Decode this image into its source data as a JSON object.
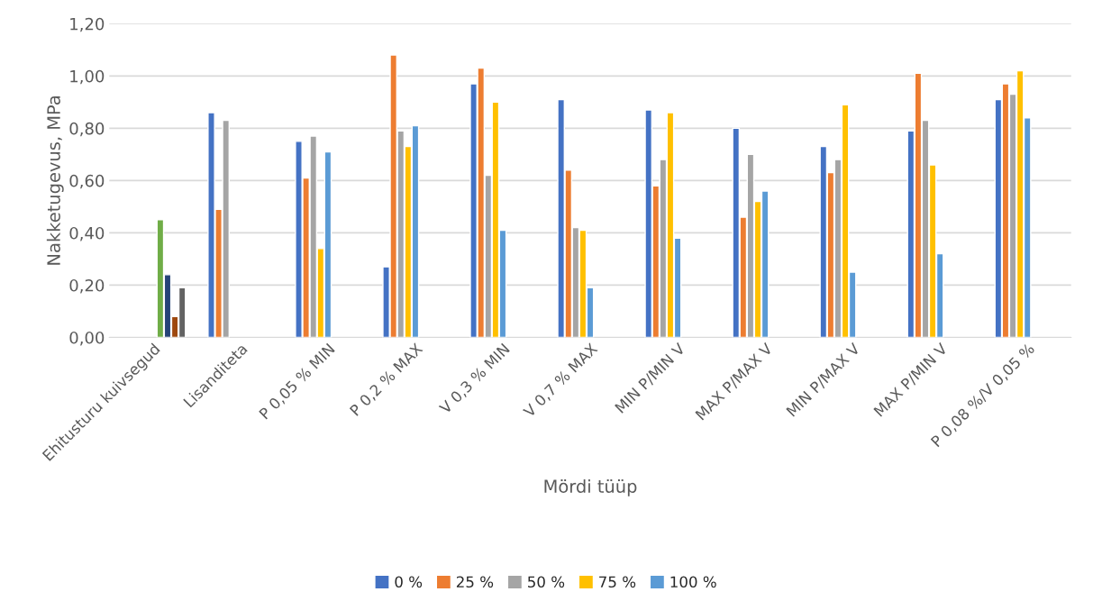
{
  "chart_data": {
    "type": "bar",
    "xlabel": "Mördi tüüp",
    "ylabel": "Nakketugevus, MPa",
    "categories": [
      "Ehitusturu kuivsegud",
      "Lisanditeta",
      "P 0,05 % MIN",
      "P 0,2 % MAX",
      "V 0,3 % MIN",
      "V 0,7 % MAX",
      "MIN P/MIN V",
      "MAX P/MAX V",
      "MIN P/MAX V",
      "MAX P/MIN V",
      "P 0,08 %/V 0,05 %"
    ],
    "series": [
      {
        "name": "0 %",
        "color": "#4472c4",
        "values": [
          null,
          0.86,
          0.75,
          0.27,
          0.97,
          0.91,
          0.87,
          0.8,
          0.73,
          0.79,
          0.91
        ]
      },
      {
        "name": "25 %",
        "color": "#ed7d31",
        "values": [
          null,
          0.49,
          0.61,
          1.08,
          1.03,
          0.64,
          0.58,
          0.46,
          0.63,
          1.01,
          0.97
        ]
      },
      {
        "name": "50 %",
        "color": "#a5a5a5",
        "values": [
          null,
          0.83,
          0.77,
          0.79,
          0.62,
          0.42,
          0.68,
          0.7,
          0.68,
          0.83,
          0.93
        ]
      },
      {
        "name": "75 %",
        "color": "#ffc000",
        "values": [
          null,
          null,
          0.34,
          0.73,
          0.9,
          0.41,
          0.86,
          0.52,
          0.89,
          0.66,
          1.02
        ]
      },
      {
        "name": "100 %",
        "color": "#5b9bd5",
        "values": [
          null,
          null,
          0.71,
          0.81,
          0.41,
          0.19,
          0.38,
          0.56,
          0.25,
          0.32,
          0.84
        ]
      },
      {
        "color": "#70ad47",
        "values": [
          0.45,
          null,
          null,
          null,
          null,
          null,
          null,
          null,
          null,
          null,
          null
        ]
      },
      {
        "color": "#264478",
        "values": [
          0.24,
          null,
          null,
          null,
          null,
          null,
          null,
          null,
          null,
          null,
          null
        ]
      },
      {
        "color": "#9e480e",
        "values": [
          0.08,
          null,
          null,
          null,
          null,
          null,
          null,
          null,
          null,
          null,
          null
        ]
      },
      {
        "color": "#636363",
        "values": [
          0.19,
          null,
          null,
          null,
          null,
          null,
          null,
          null,
          null,
          null,
          null
        ]
      }
    ],
    "ylim": [
      0,
      1.2
    ],
    "yticks": [
      {
        "value": 0,
        "label": "0,00"
      },
      {
        "value": 0.2,
        "label": "0,20"
      },
      {
        "value": 0.4,
        "label": "0,40"
      },
      {
        "value": 0.6,
        "label": "0,60"
      },
      {
        "value": 0.8,
        "label": "0,80"
      },
      {
        "value": 1.0,
        "label": "1,00"
      },
      {
        "value": 1.2,
        "label": "1,20"
      }
    ],
    "grid": "y",
    "legend": "bottom"
  }
}
